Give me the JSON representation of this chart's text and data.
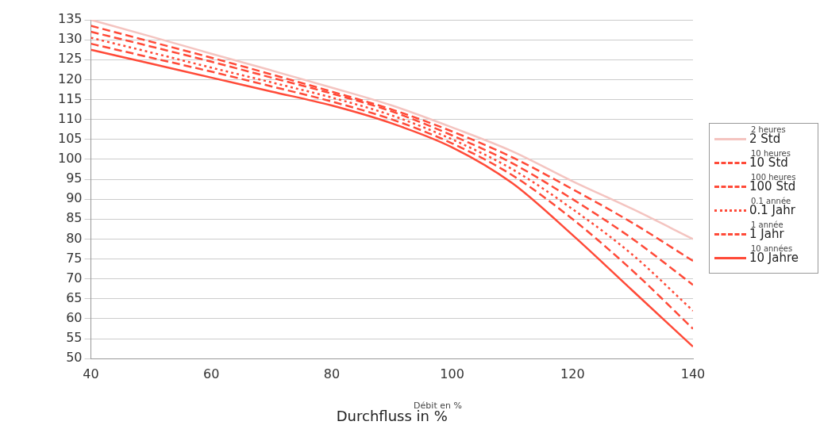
{
  "chart_data": {
    "type": "line",
    "xlabel": "Durchfluss in %",
    "x": [
      40,
      50,
      60,
      70,
      80,
      90,
      100,
      110,
      120,
      130,
      140
    ],
    "series": [
      {
        "name": "2 Std",
        "color": "#f4c4c0",
        "line_style": "solid",
        "values": [
          135,
          130.8,
          126.5,
          122.3,
          118,
          113.5,
          108,
          102,
          94.5,
          87.5,
          80
        ]
      },
      {
        "name": "10 Std",
        "color": "#ff4a38",
        "line_style": "dashed",
        "values": [
          133.5,
          129.5,
          125.5,
          121.3,
          117,
          112.5,
          107,
          100.5,
          92.5,
          84,
          74.5
        ]
      },
      {
        "name": "100 Std",
        "color": "#ff4a38",
        "line_style": "dashed",
        "values": [
          132,
          128.3,
          124.5,
          120.5,
          116.5,
          112,
          106,
          99,
          90,
          80,
          68.5
        ]
      },
      {
        "name": "0.1 Jahr",
        "color": "#ff4a38",
        "line_style": "dotted",
        "values": [
          130.5,
          126.8,
          123,
          119.3,
          115.5,
          111,
          105,
          97.5,
          87.5,
          76,
          62
        ]
      },
      {
        "name": "1 Jahr",
        "color": "#ff4a38",
        "line_style": "dashed",
        "values": [
          129,
          125.5,
          122,
          118.3,
          114.5,
          110,
          104,
          96,
          85,
          72,
          57.5
        ]
      },
      {
        "name": "10 Jahre",
        "color": "#ff4a38",
        "line_style": "solid",
        "values": [
          127.5,
          124,
          120.5,
          117,
          113.5,
          109,
          103,
          94,
          81,
          67,
          53
        ]
      }
    ],
    "annotations": [
      "2 heures",
      "10 heures",
      "100 heures",
      "0.1 année",
      "1 année",
      "10 années",
      "Débit en %"
    ],
    "xlim": [
      40,
      140
    ],
    "xticks": [
      40,
      60,
      80,
      100,
      120,
      140
    ],
    "ylim": [
      50,
      135
    ],
    "yticks": [
      50,
      55,
      60,
      65,
      70,
      75,
      80,
      85,
      90,
      95,
      100,
      105,
      110,
      115,
      120,
      125,
      130,
      135
    ],
    "grid": "y",
    "legend": "right",
    "marker": "none"
  }
}
